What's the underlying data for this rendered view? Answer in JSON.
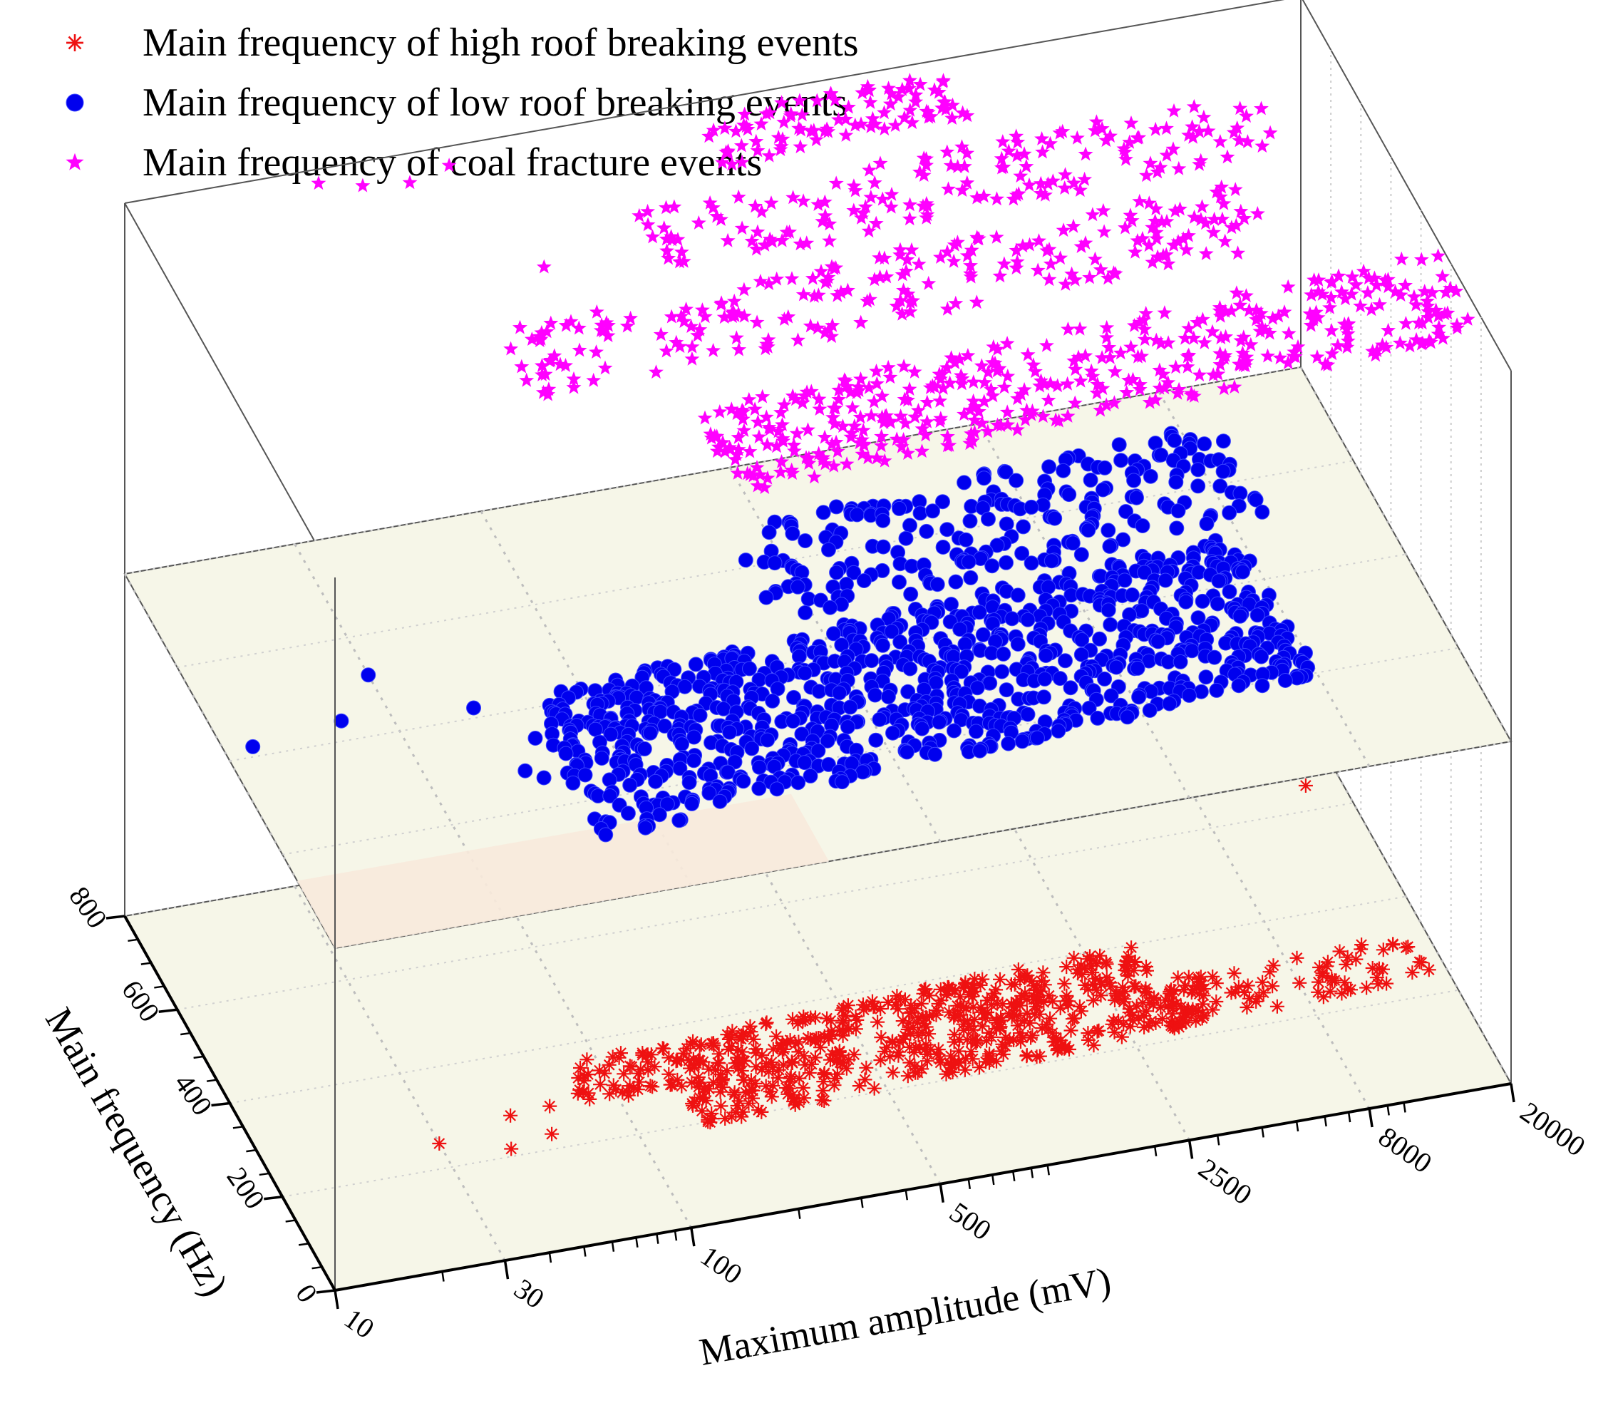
{
  "chart_data": {
    "type": "scatter",
    "projection": "3d",
    "title": "",
    "legend": {
      "placement": "top-left",
      "entries": [
        {
          "label": "Main frequency of high roof breaking events",
          "marker": "asterisk",
          "color": "#ee1111"
        },
        {
          "label": "Main frequency of low roof breaking events",
          "marker": "circle",
          "color": "#0000ee"
        },
        {
          "label": "Main frequency of coal fracture events",
          "marker": "star",
          "color": "#ff00ff"
        }
      ]
    },
    "xlabel": "Maximum amplitude (mV)",
    "ylabel": "Main frequency (Hz)",
    "x_scale": "log",
    "xlim": [
      10,
      20000
    ],
    "xticks": [
      "10",
      "30",
      "100",
      "500",
      "2500",
      "8000",
      "20000"
    ],
    "xtick_values": [
      10,
      30,
      100,
      500,
      2500,
      8000,
      20000
    ],
    "ylim": [
      0,
      800
    ],
    "yticks": [
      "0",
      "200",
      "400",
      "600",
      "800"
    ],
    "ytick_values": [
      0,
      200,
      400,
      600,
      800
    ],
    "layer_colors": {
      "plane": "#f6f6e8",
      "shadow": "#f8eadc",
      "frame": "#555555",
      "grid": "#cfcfcf"
    },
    "series": [
      {
        "name": "Main frequency of high roof breaking events",
        "layer": 0,
        "marker": "asterisk",
        "color": "#ee1111",
        "x": [
          30,
          45,
          50,
          60,
          65,
          80,
          100,
          160,
          250,
          500,
          1000,
          2500,
          4000,
          7000,
          16000
        ],
        "y": [
          250,
          215,
          280,
          230,
          285,
          300,
          330,
          330,
          350,
          360,
          380,
          340,
          320,
          300,
          650
        ],
        "clusters": [
          {
            "x_range": [
              80,
              3500
            ],
            "y_range": [
              290,
              380
            ],
            "count": 340,
            "trend": 0.4
          },
          {
            "x_range": [
              150,
              5000
            ],
            "y_range": [
              210,
              300
            ],
            "count": 280,
            "trend": 0.35
          },
          {
            "x_range": [
              2500,
              18000
            ],
            "y_range": [
              230,
              320
            ],
            "count": 80,
            "trend": 0.1
          }
        ]
      },
      {
        "name": "Main frequency of low roof breaking events",
        "layer": 1,
        "marker": "circle",
        "color": "#0000ee",
        "x": [
          12,
          22,
          30,
          50,
          55,
          60,
          65,
          70,
          80,
          100
        ],
        "y": [
          420,
          440,
          520,
          420,
          280,
          260,
          340,
          240,
          300,
          420
        ],
        "clusters": [
          {
            "x_range": [
              70,
              8000
            ],
            "y_range": [
              160,
              460
            ],
            "count": 900,
            "trend": 0.25
          },
          {
            "x_range": [
              400,
              10000
            ],
            "y_range": [
              500,
              700
            ],
            "count": 220,
            "trend": 0.2
          }
        ]
      },
      {
        "name": "Main frequency of coal fracture events",
        "layer": 2,
        "marker": "star",
        "color": "#ff00ff",
        "x": [
          35,
          45,
          60,
          80,
          100,
          120,
          200,
          800
        ],
        "y": [
          800,
          780,
          770,
          790,
          560,
          430,
          210,
          130
        ],
        "clusters": [
          {
            "x_range": [
              150,
              20000
            ],
            "y_range": [
              80,
              260
            ],
            "count": 420,
            "trend": 0.3
          },
          {
            "x_range": [
              60,
              8000
            ],
            "y_range": [
              330,
              470
            ],
            "count": 220,
            "trend": 0.3
          },
          {
            "x_range": [
              200,
              12000
            ],
            "y_range": [
              520,
              650
            ],
            "count": 160,
            "trend": 0.25
          },
          {
            "x_range": [
              400,
              2000
            ],
            "y_range": [
              700,
              800
            ],
            "count": 90,
            "trend": 0.1
          }
        ]
      }
    ]
  }
}
